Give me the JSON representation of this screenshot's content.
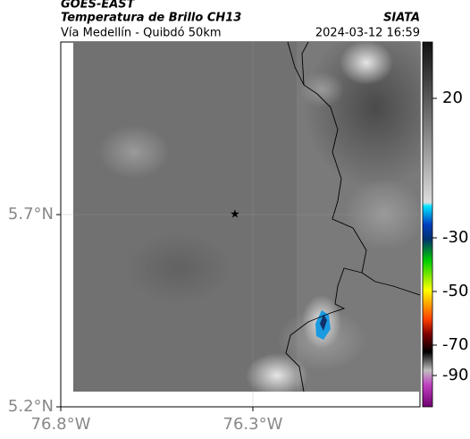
{
  "header": {
    "title": "GOES-EAST",
    "subtitle": "Temperatura de Brillo CH13",
    "source": "SIATA",
    "route": "Vía Medellín - Quibdó 50km",
    "datetime": "2024-03-12 16:59"
  },
  "map": {
    "xlim": [
      -76.8,
      -75.865
    ],
    "ylim": [
      5.2,
      6.149
    ],
    "xticks": [
      {
        "value": -76.8,
        "label": "76.8°W"
      },
      {
        "value": -76.3,
        "label": "76.3°W"
      }
    ],
    "yticks": [
      {
        "value": 5.7,
        "label": "5.7°N"
      },
      {
        "value": 5.2,
        "label": "5.2°N"
      }
    ]
  },
  "colorbar": {
    "ticks": [
      20,
      -30,
      -50,
      -70,
      -90
    ]
  }
}
